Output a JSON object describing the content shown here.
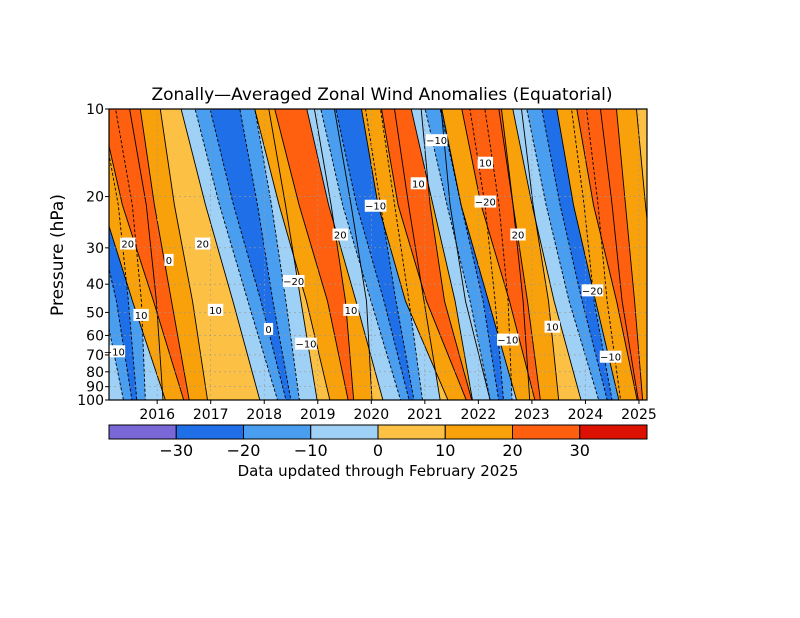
{
  "chart_data": {
    "type": "heatmap",
    "title": "Zonally—Averaged Zonal Wind Anomalies (Equatorial)",
    "ylabel": "Pressure (hPa)",
    "xlabel": "",
    "y_scale": "log",
    "y_reversed": true,
    "ylim": [
      100,
      10
    ],
    "y_ticks": [
      10,
      20,
      30,
      40,
      50,
      60,
      70,
      80,
      90,
      100
    ],
    "x_ticks": [
      "2016",
      "2017",
      "2018",
      "2019",
      "2020",
      "2021",
      "2022",
      "2023",
      "2024",
      "2025"
    ],
    "xlim": [
      2015.1,
      2025.15
    ],
    "grid": true,
    "contour_levels": [
      -30,
      -20,
      -10,
      0,
      10,
      20,
      30
    ],
    "colorbar": {
      "tick_labels": [
        "−30",
        "−20",
        "−10",
        "0",
        "10",
        "20",
        "30"
      ],
      "colors": [
        "#7b68d8",
        "#1f6fe8",
        "#4a9ef0",
        "#9fd0f5",
        "#fcc044",
        "#f8a10a",
        "#ff6010",
        "#dd1100"
      ]
    },
    "regime_colors": {
      "east_strong": "#1f6fe8",
      "east_moderate": "#4a9ef0",
      "east_weak": "#9fd0f5",
      "west_weak": "#fcc044",
      "west_moderate": "#f8a10a",
      "west_strong": "#ff6010"
    },
    "contour_labels": [
      {
        "text": "20",
        "year": 2015.45,
        "hpa": 29
      },
      {
        "text": "10",
        "year": 2015.7,
        "hpa": 51
      },
      {
        "text": "−10",
        "year": 2015.2,
        "hpa": 68
      },
      {
        "text": "0",
        "year": 2016.22,
        "hpa": 33
      },
      {
        "text": "20",
        "year": 2016.85,
        "hpa": 29
      },
      {
        "text": "10",
        "year": 2017.09,
        "hpa": 49
      },
      {
        "text": "0",
        "year": 2018.08,
        "hpa": 57
      },
      {
        "text": "−20",
        "year": 2018.55,
        "hpa": 39
      },
      {
        "text": "−10",
        "year": 2018.78,
        "hpa": 64
      },
      {
        "text": "20",
        "year": 2019.42,
        "hpa": 27
      },
      {
        "text": "10",
        "year": 2019.62,
        "hpa": 49
      },
      {
        "text": "−10",
        "year": 2020.08,
        "hpa": 21.5
      },
      {
        "text": "−10",
        "year": 2021.22,
        "hpa": 12.8
      },
      {
        "text": "10",
        "year": 2020.88,
        "hpa": 18
      },
      {
        "text": "10",
        "year": 2022.13,
        "hpa": 15.3
      },
      {
        "text": "−20",
        "year": 2022.13,
        "hpa": 20.8
      },
      {
        "text": "20",
        "year": 2022.74,
        "hpa": 27
      },
      {
        "text": "−10",
        "year": 2022.55,
        "hpa": 62
      },
      {
        "text": "10",
        "year": 2023.38,
        "hpa": 56
      },
      {
        "text": "−20",
        "year": 2024.13,
        "hpa": 42
      },
      {
        "text": "−10",
        "year": 2024.47,
        "hpa": 71
      }
    ]
  },
  "footer": "Data updated through February 2025"
}
